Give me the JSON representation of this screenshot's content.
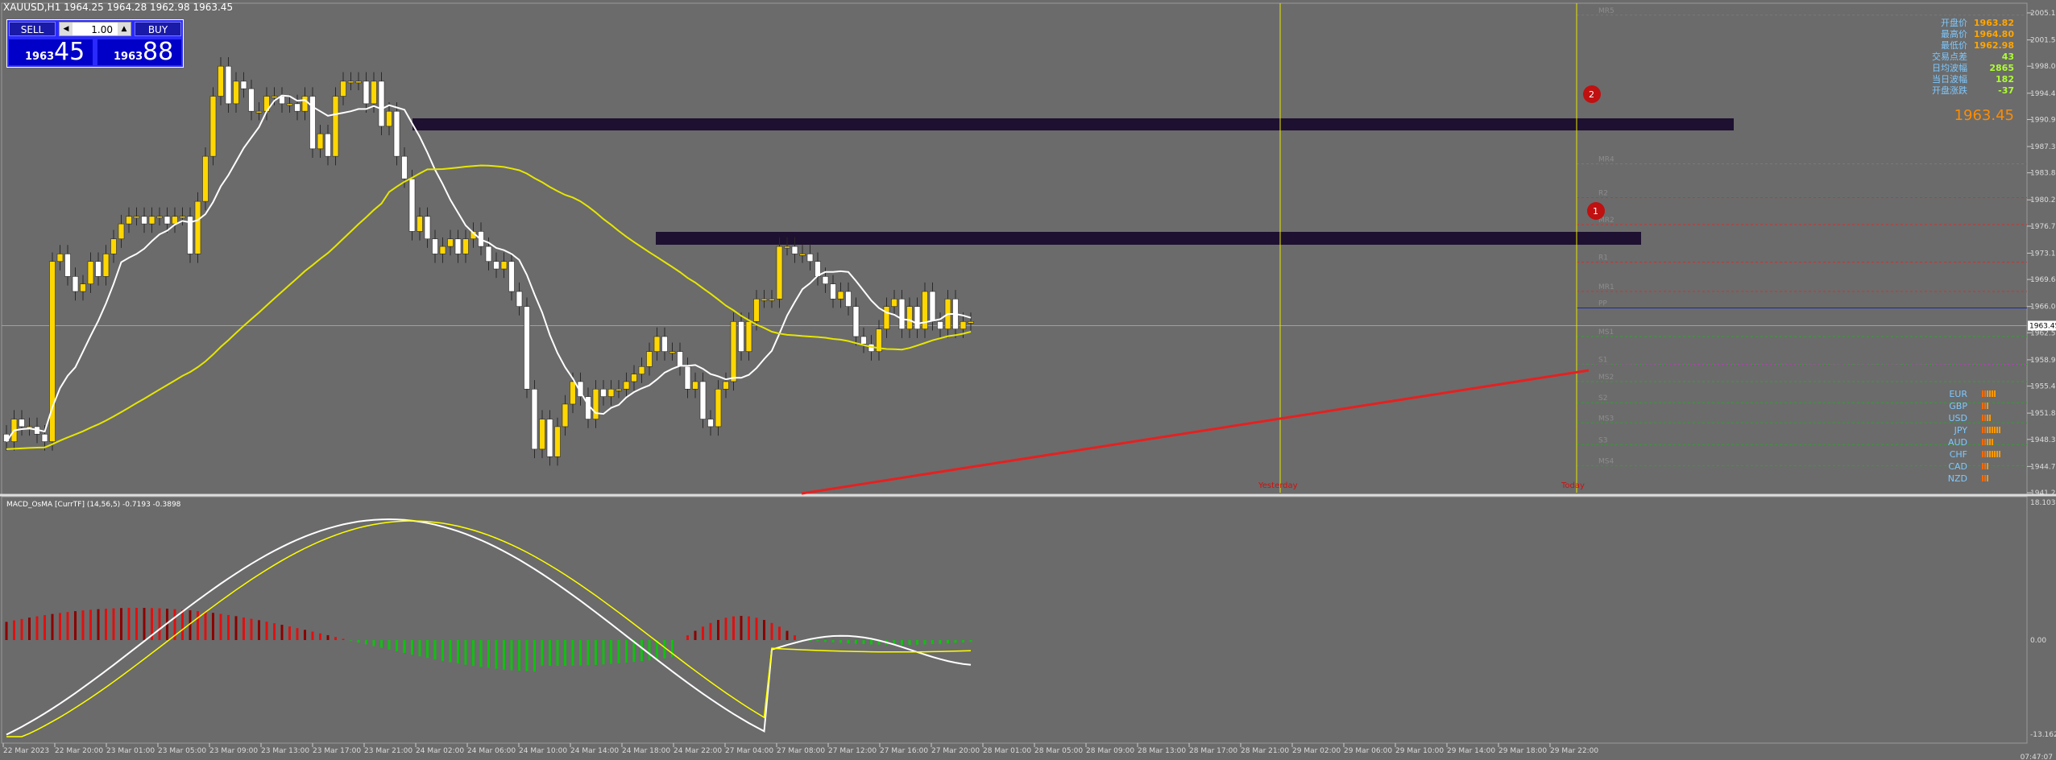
{
  "window": {
    "title": "XAUUSD,H1  1964.25 1964.28 1962.98 1963.45"
  },
  "trade_panel": {
    "sell_label": "SELL",
    "buy_label": "BUY",
    "lot_value": "1.00",
    "sell_price_small": "1963",
    "sell_price_big": "45",
    "buy_price_small": "1963",
    "buy_price_big": "88"
  },
  "info_panel": {
    "rows": [
      {
        "label": "开盘价",
        "value": "1963.82",
        "color": "#ffa500"
      },
      {
        "label": "最高价",
        "value": "1964.80",
        "color": "#ffa500"
      },
      {
        "label": "最低价",
        "value": "1962.98",
        "color": "#ffa500"
      },
      {
        "label": "交易点差",
        "value": "43",
        "color": "#adff2f"
      },
      {
        "label": "日均波幅",
        "value": "2865",
        "color": "#adff2f"
      },
      {
        "label": "当日波幅",
        "value": "182",
        "color": "#adff2f"
      },
      {
        "label": "开盘涨跌",
        "value": "-37",
        "color": "#adff2f"
      }
    ],
    "current_price": "1963.45"
  },
  "currency_strength": [
    "EUR",
    "GBP",
    "USD",
    "JPY",
    "AUD",
    "CHF",
    "CAD",
    "NZD"
  ],
  "markers": {
    "marker1": "1",
    "marker2": "2",
    "yesterday": "Yesterday",
    "today": "Today"
  },
  "pivot_labels": [
    "MR5",
    "MR4",
    "R2",
    "MR2",
    "R1",
    "MR1",
    "PP",
    "MS1",
    "S1",
    "MS2",
    "S2",
    "MS3",
    "S3",
    "MS4"
  ],
  "price_axis": [
    "2005.10",
    "2001.50",
    "1998.00",
    "1994.40",
    "1990.90",
    "1987.30",
    "1983.80",
    "1980.20",
    "1976.70",
    "1973.10",
    "1969.60",
    "1966.00",
    "1962.50",
    "1958.90",
    "1955.40",
    "1951.80",
    "1948.30",
    "1944.70",
    "1941.20"
  ],
  "current_price_tag": "1963.45",
  "macd": {
    "title": "MACD_OsMA [CurrTF] (14,56,5) -0.7193 -0.3898",
    "axis": [
      "18.1036",
      "0.00",
      "-13.1625"
    ]
  },
  "time_axis": [
    "22 Mar 2023",
    "22 Mar 20:00",
    "23 Mar 01:00",
    "23 Mar 05:00",
    "23 Mar 09:00",
    "23 Mar 13:00",
    "23 Mar 17:00",
    "23 Mar 21:00",
    "24 Mar 02:00",
    "24 Mar 06:00",
    "24 Mar 10:00",
    "24 Mar 14:00",
    "24 Mar 18:00",
    "24 Mar 22:00",
    "27 Mar 04:00",
    "27 Mar 08:00",
    "27 Mar 12:00",
    "27 Mar 16:00",
    "27 Mar 20:00",
    "28 Mar 01:00",
    "28 Mar 05:00",
    "28 Mar 09:00",
    "28 Mar 13:00",
    "28 Mar 17:00",
    "28 Mar 21:00",
    "29 Mar 02:00",
    "29 Mar 06:00",
    "29 Mar 10:00",
    "29 Mar 14:00",
    "29 Mar 18:00",
    "29 Mar 22:00"
  ],
  "corner_time": "07:47:07",
  "colors": {
    "bull": "#ffd700",
    "bear": "#ffffff",
    "ma_fast": "#ffffff",
    "ma_mid": "#e6e600",
    "ma_slow": "#e62020",
    "zone": "#1e1030",
    "macd_up": "#e01010",
    "macd_down": "#10c010"
  }
}
